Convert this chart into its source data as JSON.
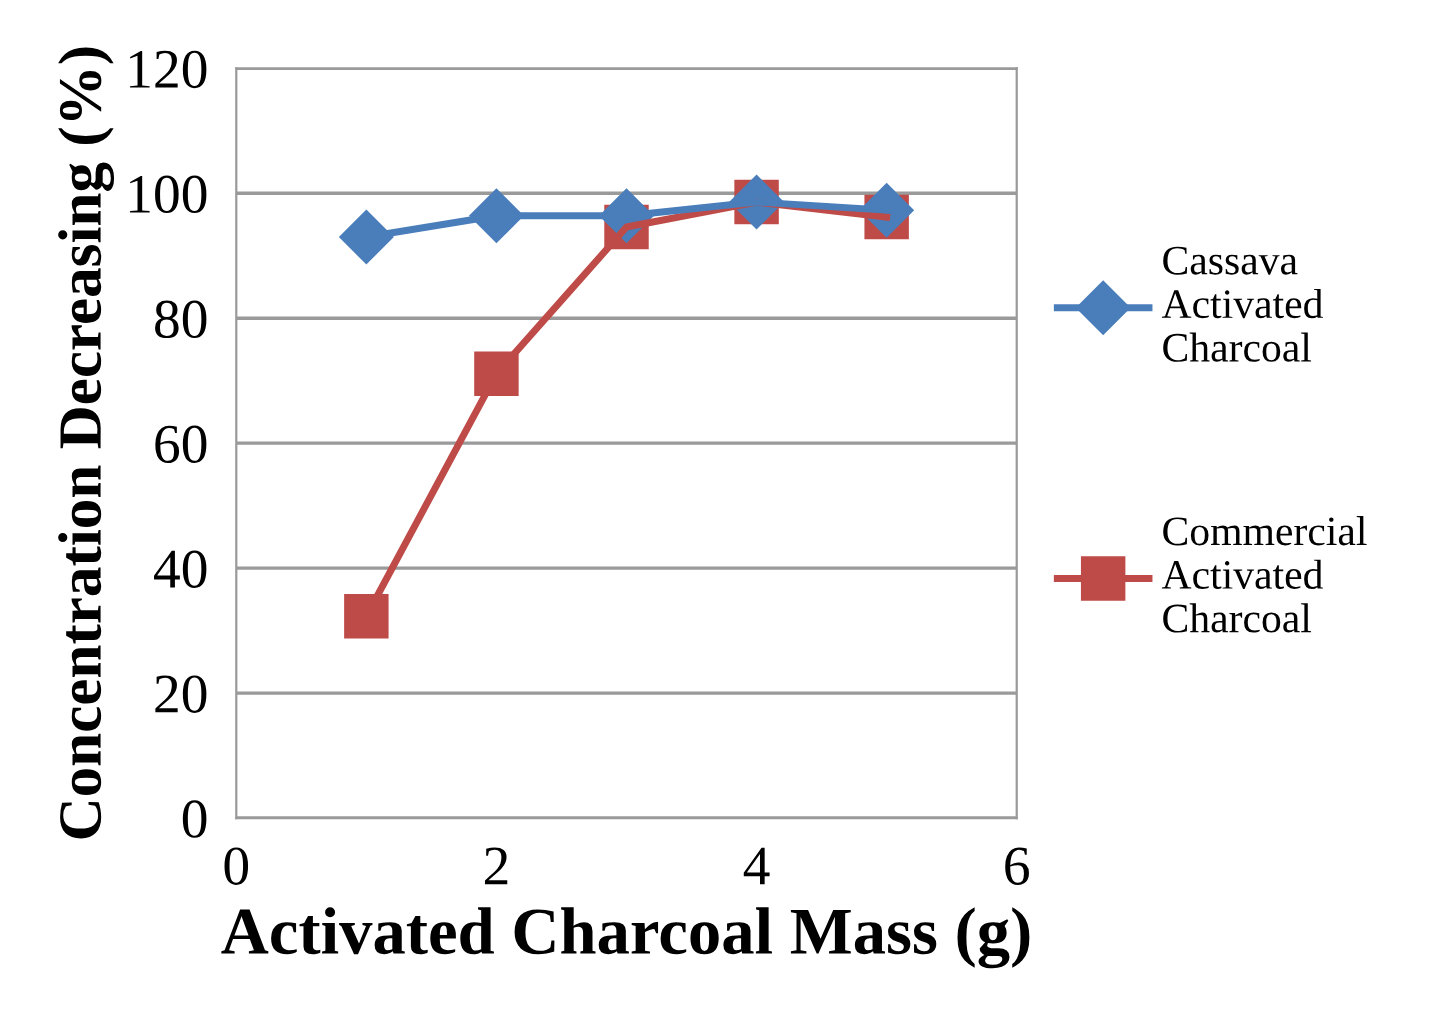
{
  "chart_data": {
    "type": "line",
    "xlabel": "Activated Charcoal Mass (g)",
    "ylabel": "Concentration Decreasing (%)",
    "x": [
      1,
      2,
      3,
      4,
      5
    ],
    "series": [
      {
        "name": "Cassava Activated Charcoal",
        "color": "#4a7ebb",
        "marker": "diamond",
        "values": [
          93,
          96.4,
          96.4,
          98.6,
          97.3
        ]
      },
      {
        "name": "Commercial Activated Charcoal",
        "color": "#be4b48",
        "marker": "square",
        "values": [
          32.3,
          71.1,
          94.6,
          98.6,
          96.2
        ]
      }
    ],
    "xlim": [
      0,
      6
    ],
    "xticks": [
      0,
      2,
      4,
      6
    ],
    "ylim": [
      0,
      120
    ],
    "yticks": [
      0,
      20,
      40,
      60,
      80,
      100,
      120
    ],
    "grid": "y",
    "legend": "right",
    "line_style": "solid"
  }
}
